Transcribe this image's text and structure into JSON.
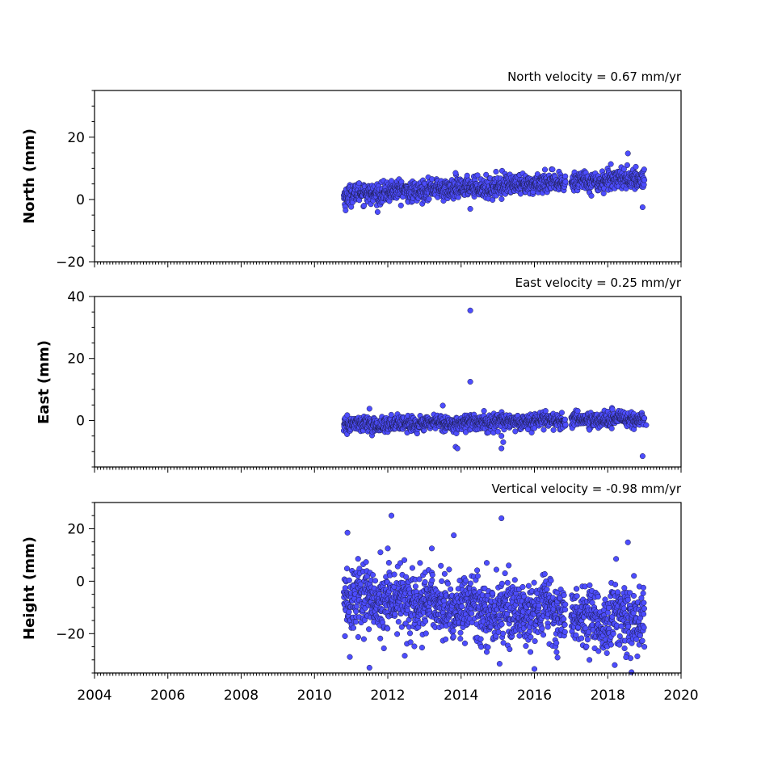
{
  "chart_data": [
    {
      "type": "scatter",
      "title": "North velocity = 0.67 mm/yr",
      "ylabel": "North (mm)",
      "xlim": [
        2004,
        2020
      ],
      "ylim": [
        -20,
        35
      ],
      "yticks": [
        -20,
        0,
        20
      ],
      "xticks": [
        2004,
        2006,
        2008,
        2010,
        2012,
        2014,
        2016,
        2018,
        2020
      ],
      "show_xtick_labels": false,
      "color": "#4d4dff",
      "series": [
        {
          "gen": {
            "x_start": 2010.8,
            "x_end": 2019.0,
            "n": 1300,
            "start": 1.5,
            "slope": 0.67,
            "noise": 1.6,
            "gap": [
              2016.85,
              2017.0
            ]
          },
          "outliers": [
            [
              2010.85,
              -3.5
            ],
            [
              2018.55,
              14.8
            ],
            [
              2018.95,
              -2.5
            ],
            [
              2013.85,
              8.5
            ],
            [
              2014.25,
              -3.0
            ],
            [
              2012.1,
              6.0
            ]
          ]
        }
      ]
    },
    {
      "type": "scatter",
      "title": "East velocity = 0.25 mm/yr",
      "ylabel": "East (mm)",
      "xlim": [
        2004,
        2020
      ],
      "ylim": [
        -15,
        40
      ],
      "yticks": [
        0,
        20,
        40
      ],
      "xticks": [
        2004,
        2006,
        2008,
        2010,
        2012,
        2014,
        2016,
        2018,
        2020
      ],
      "show_xtick_labels": false,
      "color": "#4d4dff",
      "series": [
        {
          "gen": {
            "x_start": 2010.8,
            "x_end": 2019.0,
            "n": 1300,
            "start": -1.5,
            "slope": 0.25,
            "noise": 1.2,
            "gap": [
              2016.85,
              2017.0
            ]
          },
          "outliers": [
            [
              2014.25,
              35.5
            ],
            [
              2014.25,
              12.5
            ],
            [
              2013.5,
              4.8
            ],
            [
              2011.5,
              3.8
            ],
            [
              2013.85,
              -8.5
            ],
            [
              2013.9,
              -9.0
            ],
            [
              2015.1,
              -5.0
            ],
            [
              2015.15,
              -7.0
            ],
            [
              2015.1,
              -9.0
            ],
            [
              2018.95,
              -11.5
            ],
            [
              2019.05,
              -1.5
            ],
            [
              2016.0,
              -2.5
            ],
            [
              2017.5,
              -3.0
            ]
          ]
        }
      ]
    },
    {
      "type": "scatter",
      "title": "Vertical velocity = -0.98 mm/yr",
      "ylabel": "Height (mm)",
      "xlim": [
        2004,
        2020
      ],
      "ylim": [
        -35,
        30
      ],
      "yticks": [
        -20,
        0,
        20
      ],
      "xticks": [
        2004,
        2006,
        2008,
        2010,
        2012,
        2014,
        2016,
        2018,
        2020
      ],
      "show_xtick_labels": true,
      "color": "#4d4dff",
      "series": [
        {
          "gen": {
            "x_start": 2010.8,
            "x_end": 2019.0,
            "n": 1500,
            "start": -7,
            "slope": -0.98,
            "noise": 6.0,
            "gap": [
              2016.85,
              2017.0
            ]
          },
          "outliers": [
            [
              2010.9,
              18.5
            ],
            [
              2012.1,
              25.0
            ],
            [
              2015.1,
              24.0
            ],
            [
              2013.8,
              17.5
            ],
            [
              2018.55,
              14.8
            ],
            [
              2011.5,
              -33.0
            ],
            [
              2016.0,
              -33.5
            ],
            [
              2015.05,
              -31.5
            ],
            [
              2017.5,
              -30.0
            ],
            [
              2018.5,
              -29.0
            ],
            [
              2011.8,
              11.0
            ],
            [
              2012.0,
              12.5
            ],
            [
              2013.2,
              12.5
            ],
            [
              2014.7,
              7.0
            ],
            [
              2015.3,
              6.0
            ]
          ]
        }
      ]
    }
  ]
}
